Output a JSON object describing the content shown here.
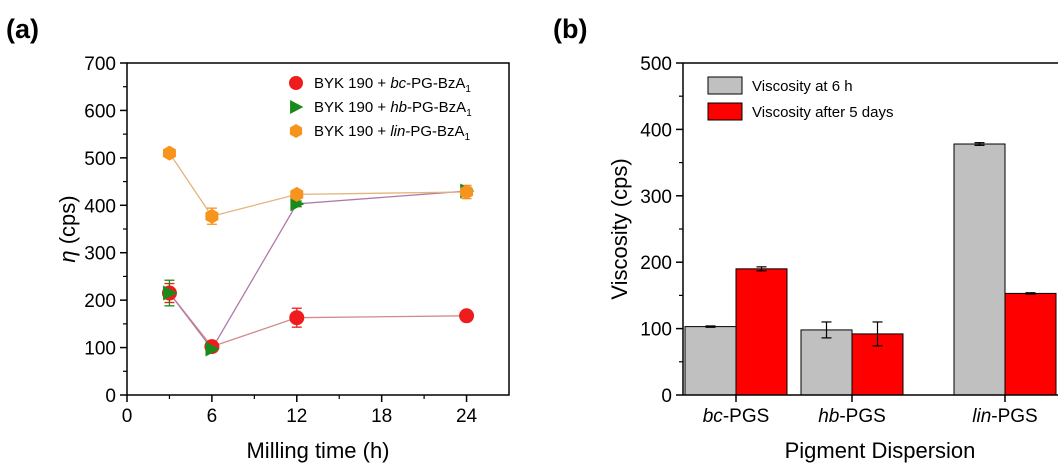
{
  "panels": {
    "a": {
      "label": "(a)"
    },
    "b": {
      "label": "(b)"
    }
  },
  "chart_data": [
    {
      "type": "line",
      "panel": "(a)",
      "xlabel": "Milling time (h)",
      "ylabel_symbol": "η",
      "ylabel": " (cps)",
      "xlim": [
        0,
        27
      ],
      "ylim": [
        0,
        700
      ],
      "xticks": [
        0,
        6,
        12,
        18,
        24
      ],
      "yticks": [
        0,
        100,
        200,
        300,
        400,
        500,
        600,
        700
      ],
      "grid": false,
      "legend_position": "top-right",
      "series": [
        {
          "name_prefix": "BYK 190 + ",
          "name_italic": "bc",
          "name_suffix": "-PG-BzA",
          "name_sub": "1",
          "marker": "circle",
          "color": "#ee1c1c",
          "line_color": "#d28a8a",
          "points": [
            {
              "x": 3,
              "y": 215,
              "err": 20
            },
            {
              "x": 6,
              "y": 102,
              "err": 6
            },
            {
              "x": 12,
              "y": 163,
              "err": 20
            },
            {
              "x": 24,
              "y": 167,
              "err": 5
            }
          ]
        },
        {
          "name_prefix": "BYK 190 + ",
          "name_italic": "hb",
          "name_suffix": "-PG-BzA",
          "name_sub": "1",
          "marker": "triangle-right",
          "color": "#1a8a1a",
          "line_color": "#b07aa6",
          "points": [
            {
              "x": 3,
              "y": 215,
              "err": 27
            },
            {
              "x": 6,
              "y": 97,
              "err": 6
            },
            {
              "x": 12,
              "y": 403,
              "err": 6
            },
            {
              "x": 24,
              "y": 430,
              "err": 8
            }
          ]
        },
        {
          "name_prefix": "BYK 190 + ",
          "name_italic": "lin",
          "name_suffix": "-PG-BzA",
          "name_sub": "1",
          "marker": "hexagon",
          "color": "#f7941d",
          "line_color": "#e3b57a",
          "points": [
            {
              "x": 3,
              "y": 510,
              "err": 4
            },
            {
              "x": 6,
              "y": 377,
              "err": 17
            },
            {
              "x": 12,
              "y": 423,
              "err": 6
            },
            {
              "x": 24,
              "y": 428,
              "err": 14
            }
          ]
        }
      ]
    },
    {
      "type": "bar",
      "panel": "(b)",
      "xlabel": "Pigment Dispersion",
      "ylabel": "Viscosity (cps)",
      "ylim": [
        0,
        500
      ],
      "yticks": [
        0,
        100,
        200,
        300,
        400,
        500
      ],
      "grid": false,
      "legend_position": "top-left",
      "categories": [
        {
          "italic": "bc",
          "suffix": "-PGS"
        },
        {
          "italic": "hb",
          "suffix": "-PGS"
        },
        {
          "italic": "lin",
          "suffix": "-PGS"
        }
      ],
      "series": [
        {
          "name": "Viscosity at 6 h",
          "color": "#c0c0c0",
          "values": [
            103,
            98,
            378
          ],
          "errors": [
            1,
            12,
            2
          ]
        },
        {
          "name": "Viscosity after 5 days",
          "color": "#ff0000",
          "values": [
            190,
            92,
            153
          ],
          "errors": [
            3,
            18,
            1
          ]
        }
      ]
    }
  ]
}
